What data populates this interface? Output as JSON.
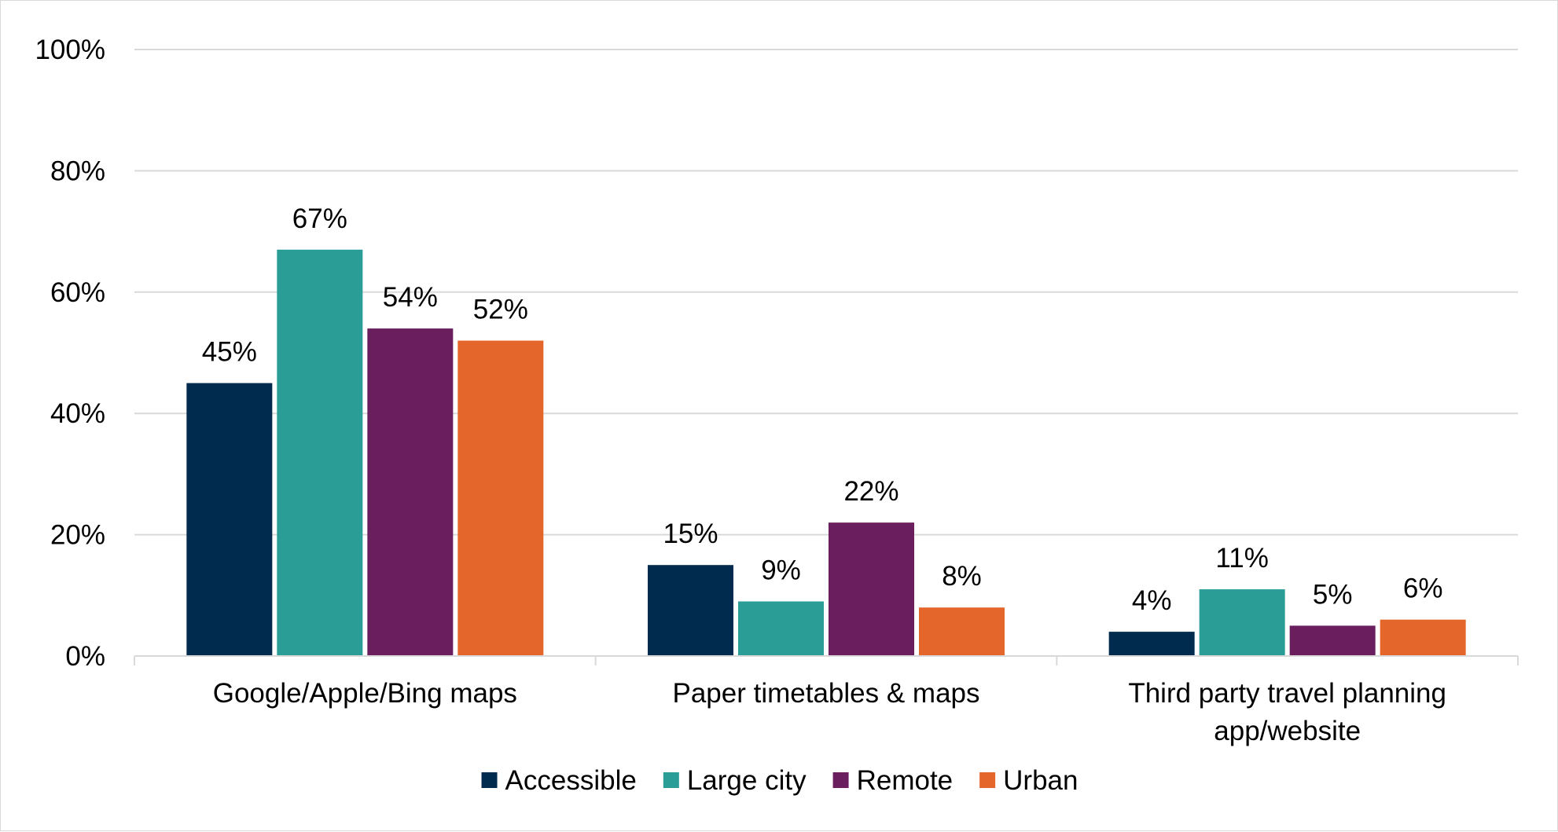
{
  "chart_data": {
    "type": "bar",
    "categories": [
      [
        "Google/Apple/Bing maps"
      ],
      [
        "Paper timetables & maps"
      ],
      [
        "Third party travel planning",
        "app/website"
      ]
    ],
    "series": [
      {
        "name": "Accessible",
        "color": "#002b4f",
        "values": [
          45,
          15,
          4
        ],
        "labels": [
          "45%",
          "15%",
          "4%"
        ]
      },
      {
        "name": "Large city",
        "color": "#2a9d96",
        "values": [
          67,
          9,
          11
        ],
        "labels": [
          "67%",
          "9%",
          "11%"
        ]
      },
      {
        "name": "Remote",
        "color": "#6a1e5e",
        "values": [
          54,
          22,
          5
        ],
        "labels": [
          "54%",
          "22%",
          "5%"
        ]
      },
      {
        "name": "Urban",
        "color": "#e5662b",
        "values": [
          52,
          8,
          6
        ],
        "labels": [
          "52%",
          "8%",
          "6%"
        ]
      }
    ],
    "ylim": [
      0,
      100
    ],
    "yticks": [
      0,
      20,
      40,
      60,
      80,
      100
    ],
    "ytick_labels": [
      "0%",
      "20%",
      "40%",
      "60%",
      "80%",
      "100%"
    ],
    "grid": true,
    "legend": "bottom-center",
    "title": "",
    "xlabel": "",
    "ylabel": ""
  }
}
